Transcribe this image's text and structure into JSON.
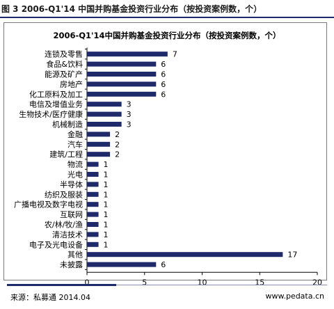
{
  "figure_caption": "图 3 2006-Q1'14 中国并购基金投资行业分布（按投资案例数，个）",
  "source": "来源：私募通 2014.04",
  "website": "www.pedata.cn",
  "colors": {
    "bar": "#1f2a6b",
    "rule": "#1f2a6b"
  },
  "chart_data": {
    "type": "bar",
    "orientation": "horizontal",
    "title": "2006-Q1'14中国并购基金投资行业分布（按投资案例数，个）",
    "categories": [
      "连锁及零售",
      "食品&饮料",
      "能源及矿产",
      "房地产",
      "化工原料及加工",
      "电信及增值业务",
      "生物技术/医疗健康",
      "机械制造",
      "金融",
      "汽车",
      "建筑/工程",
      "物流",
      "光电",
      "半导体",
      "纺织及服装",
      "广播电视及数字电视",
      "互联网",
      "农/林/牧/渔",
      "清洁技术",
      "电子及光电设备",
      "其他",
      "未披露"
    ],
    "values": [
      7,
      6,
      6,
      6,
      6,
      3,
      3,
      3,
      2,
      2,
      2,
      1,
      1,
      1,
      1,
      1,
      1,
      1,
      1,
      1,
      17,
      6
    ],
    "value_labels": [
      "7",
      "6",
      "6",
      "6",
      "6",
      "3",
      "3",
      "3",
      "2",
      "2",
      "2",
      "1",
      "1",
      "1",
      "1",
      "1",
      "1",
      "1",
      "1",
      "1",
      "17",
      "6"
    ],
    "x_ticks": [
      "0",
      "5",
      "10",
      "15",
      "20"
    ],
    "xlim": [
      0,
      20
    ],
    "grid": false
  }
}
